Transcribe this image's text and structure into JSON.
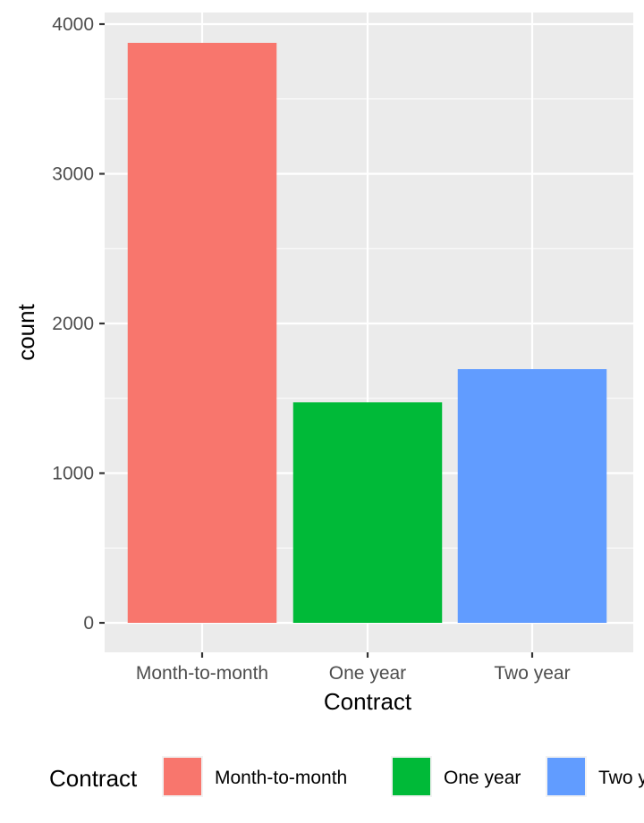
{
  "chart_data": {
    "type": "bar",
    "categories": [
      "Month-to-month",
      "One year",
      "Two year"
    ],
    "values": [
      3875,
      1473,
      1695
    ],
    "colors": [
      "#F8766D",
      "#00BA38",
      "#619CFF"
    ],
    "xlabel": "Contract",
    "ylabel": "count",
    "ylim": [
      0,
      4000
    ],
    "yticks": [
      0,
      1000,
      2000,
      3000,
      4000
    ],
    "grid": true,
    "panel_background": "#EBEBEB",
    "legend": {
      "position": "bottom",
      "title": "Contract",
      "entries": [
        "Month-to-month",
        "One year",
        "Two year"
      ]
    }
  }
}
